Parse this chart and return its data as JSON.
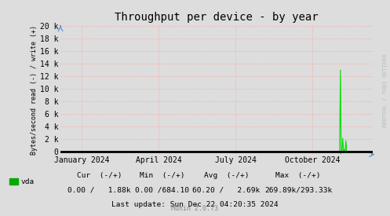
{
  "title": "Throughput per device - by year",
  "ylabel": "Bytes/second read (-) / write (+)",
  "xlabel_ticks": [
    "January 2024",
    "April 2024",
    "July 2024",
    "October 2024"
  ],
  "xlabel_tick_positions": [
    0.068,
    0.315,
    0.562,
    0.808
  ],
  "ylim": [
    -400,
    20000
  ],
  "yticks": [
    0,
    2000,
    4000,
    6000,
    8000,
    10000,
    12000,
    14000,
    16000,
    18000,
    20000
  ],
  "ytick_labels": [
    "0",
    "2 k",
    "4 k",
    "6 k",
    "8 k",
    "10 k",
    "12 k",
    "14 k",
    "16 k",
    "18 k",
    "20 k"
  ],
  "bg_color": "#dddddd",
  "plot_bg_color": "#dddddd",
  "grid_color": "#ff9999",
  "line_color": "#00dd00",
  "legend_label": "vda",
  "legend_color": "#00aa00",
  "footer_text": "Last update: Sun Dec 22 04:20:35 2024",
  "munin_text": "Munin 2.0.73",
  "cur_header": "Cur  (-/+)",
  "min_header": "Min  (-/+)",
  "avg_header": "Avg  (-/+)",
  "max_header": "Max  (-/+)",
  "cur_val": "0.00 /   1.88k",
  "min_val": "0.00 /684.10",
  "avg_val": "60.20 /   2.69k",
  "max_val": "269.89k/293.33k",
  "watermark": "RRDTOOL / TOBI OETIKER",
  "n_points": 400,
  "spike_index": 358,
  "spike_value_write": 13000,
  "spike_value_read": -300,
  "post_spike_write1": 2200,
  "post_spike_write2": 400,
  "post_spike_write3": 1800,
  "post_spike_read1": -100,
  "post_spike_read2": -150
}
